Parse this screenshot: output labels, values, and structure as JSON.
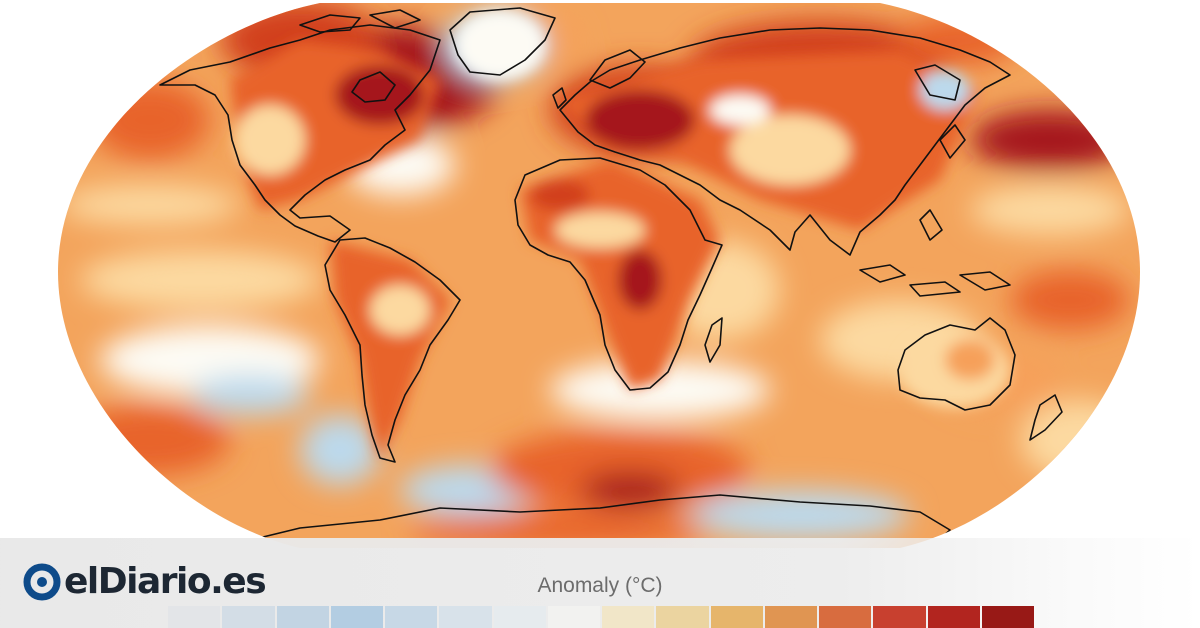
{
  "brand": {
    "name": "elDiario.es",
    "logo_icon": "eldiario-logo-icon",
    "primary_color": "#0e4b8a"
  },
  "legend": {
    "title": "Anomaly (°C)",
    "swatch_colors": [
      "#e3e5e8",
      "#d3dde6",
      "#c2d4e3",
      "#b3cde2",
      "#c7d8e6",
      "#d8e2ea",
      "#e6ebee",
      "#f2f2f0",
      "#f1e6c8",
      "#ebd4a0",
      "#e6b56b",
      "#e09552",
      "#d86c3f",
      "#c8402f",
      "#b2251f",
      "#981916"
    ]
  },
  "map": {
    "projection": "Robinson",
    "variable": "surface air temperature anomaly",
    "colors": {
      "ocean_base": "#f3a45c",
      "coolest": "#6fa7d3",
      "cool": "#bcd9ec",
      "neutral": "#fdfbf4",
      "slight_warm": "#fcd9a0",
      "warm": "#f6a05a",
      "hot": "#e8632c",
      "hotter": "#d2401f",
      "hottest": "#a5161a",
      "coastline": "#111111"
    }
  }
}
